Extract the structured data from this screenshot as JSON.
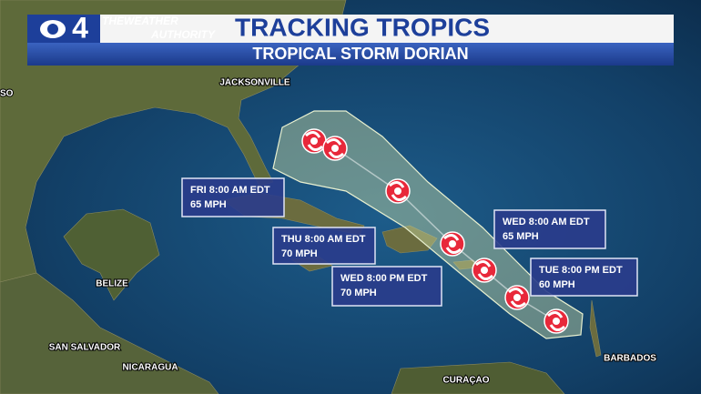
{
  "header": {
    "channel": "4",
    "logo_line1": "THEWEATHER",
    "logo_line2": "AUTHORITY",
    "title": "TRACKING TROPICS",
    "subtitle": "TROPICAL STORM DORIAN"
  },
  "places": [
    "SO",
    "JACKSONVILLE",
    "BELIZE",
    "SAN SALVADOR",
    "NICARAGUA",
    "CURAÇAO",
    "BARBADOS"
  ],
  "forecasts": [
    {
      "time": "FRI 8:00 AM EDT",
      "wind": "65 MPH"
    },
    {
      "time": "THU 8:00 AM EDT",
      "wind": "70 MPH"
    },
    {
      "time": "WED 8:00 PM EDT",
      "wind": "70 MPH"
    },
    {
      "time": "WED 8:00 AM EDT",
      "wind": "65 MPH"
    },
    {
      "time": "TUE 8:00 PM EDT",
      "wind": "60 MPH"
    }
  ]
}
